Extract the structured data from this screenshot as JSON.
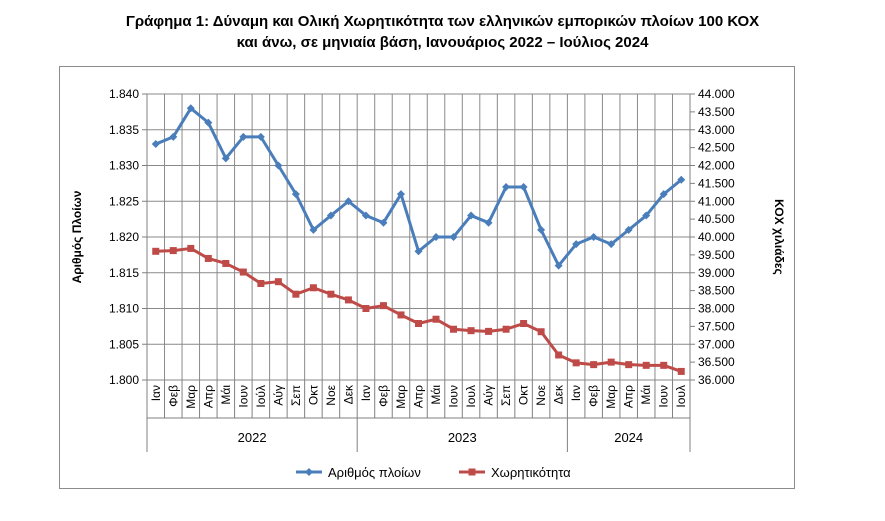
{
  "title_line1": "Γράφημα 1: Δύναμη και Ολική Χωρητικότητα των ελληνικών εμπορικών πλοίων 100 ΚΟΧ",
  "title_line2": "και άνω, σε μηνιαία βάση, Ιανουάριος 2022 – Ιούλιος 2024",
  "chart_data": {
    "type": "line",
    "ylabel_left": "Αριθμός Πλοίων",
    "ylabel_right": "ΚΟΧ χιλιάδες",
    "ylim_left": [
      1.8,
      1.84
    ],
    "ylim_right": [
      36000,
      44000
    ],
    "y_ticks_left": [
      "1.840",
      "1.835",
      "1.830",
      "1.825",
      "1.820",
      "1.815",
      "1.810",
      "1.805",
      "1.800"
    ],
    "y_ticks_right": [
      "44.000",
      "43.500",
      "43.000",
      "42.500",
      "42.000",
      "41.500",
      "41.000",
      "40.500",
      "40.000",
      "39.500",
      "39.000",
      "38.500",
      "38.000",
      "37.500",
      "37.000",
      "36.500",
      "36.000"
    ],
    "categories": [
      "Ιαν",
      "Φεβ",
      "Μαρ",
      "Απρ",
      "Μάι",
      "Ιουν",
      "Ιούλ",
      "Αύγ",
      "Σεπ",
      "Οκτ",
      "Νοε",
      "Δεκ",
      "Ιαν",
      "Φεβ",
      "Μαρ",
      "Απρ",
      "Μάι",
      "Ιουν",
      "Ιουλ",
      "Αύγ",
      "Σεπ",
      "Οκτ",
      "Νοε",
      "Δεκ",
      "Ιαν",
      "Φεβ",
      "Μαρ",
      "Απρ",
      "Μάι",
      "Ιουν",
      "Ιουλ"
    ],
    "years": [
      {
        "label": "2022",
        "span": 12
      },
      {
        "label": "2023",
        "span": 12
      },
      {
        "label": "2024",
        "span": 7
      }
    ],
    "grid": true,
    "legend_position": "bottom",
    "series": [
      {
        "name": "Αριθμός πλοίων",
        "axis": "left",
        "color": "#4a7ebb",
        "marker": "diamond",
        "values": [
          1.833,
          1.834,
          1.838,
          1.836,
          1.831,
          1.834,
          1.834,
          1.83,
          1.826,
          1.821,
          1.823,
          1.825,
          1.823,
          1.822,
          1.826,
          1.818,
          1.82,
          1.82,
          1.823,
          1.822,
          1.827,
          1.827,
          1.821,
          1.816,
          1.819,
          1.82,
          1.819,
          1.821,
          1.823,
          1.826,
          1.828
        ]
      },
      {
        "name": "Χωρητικότητα",
        "axis": "right",
        "color": "#be4b48",
        "marker": "square",
        "values": [
          39600,
          39620,
          39680,
          39400,
          39260,
          39020,
          38700,
          38750,
          38400,
          38580,
          38400,
          38240,
          38000,
          38080,
          37820,
          37580,
          37700,
          37420,
          37380,
          37360,
          37420,
          37580,
          37350,
          36700,
          36480,
          36430,
          36500,
          36430,
          36410,
          36410,
          36240
        ]
      }
    ]
  }
}
